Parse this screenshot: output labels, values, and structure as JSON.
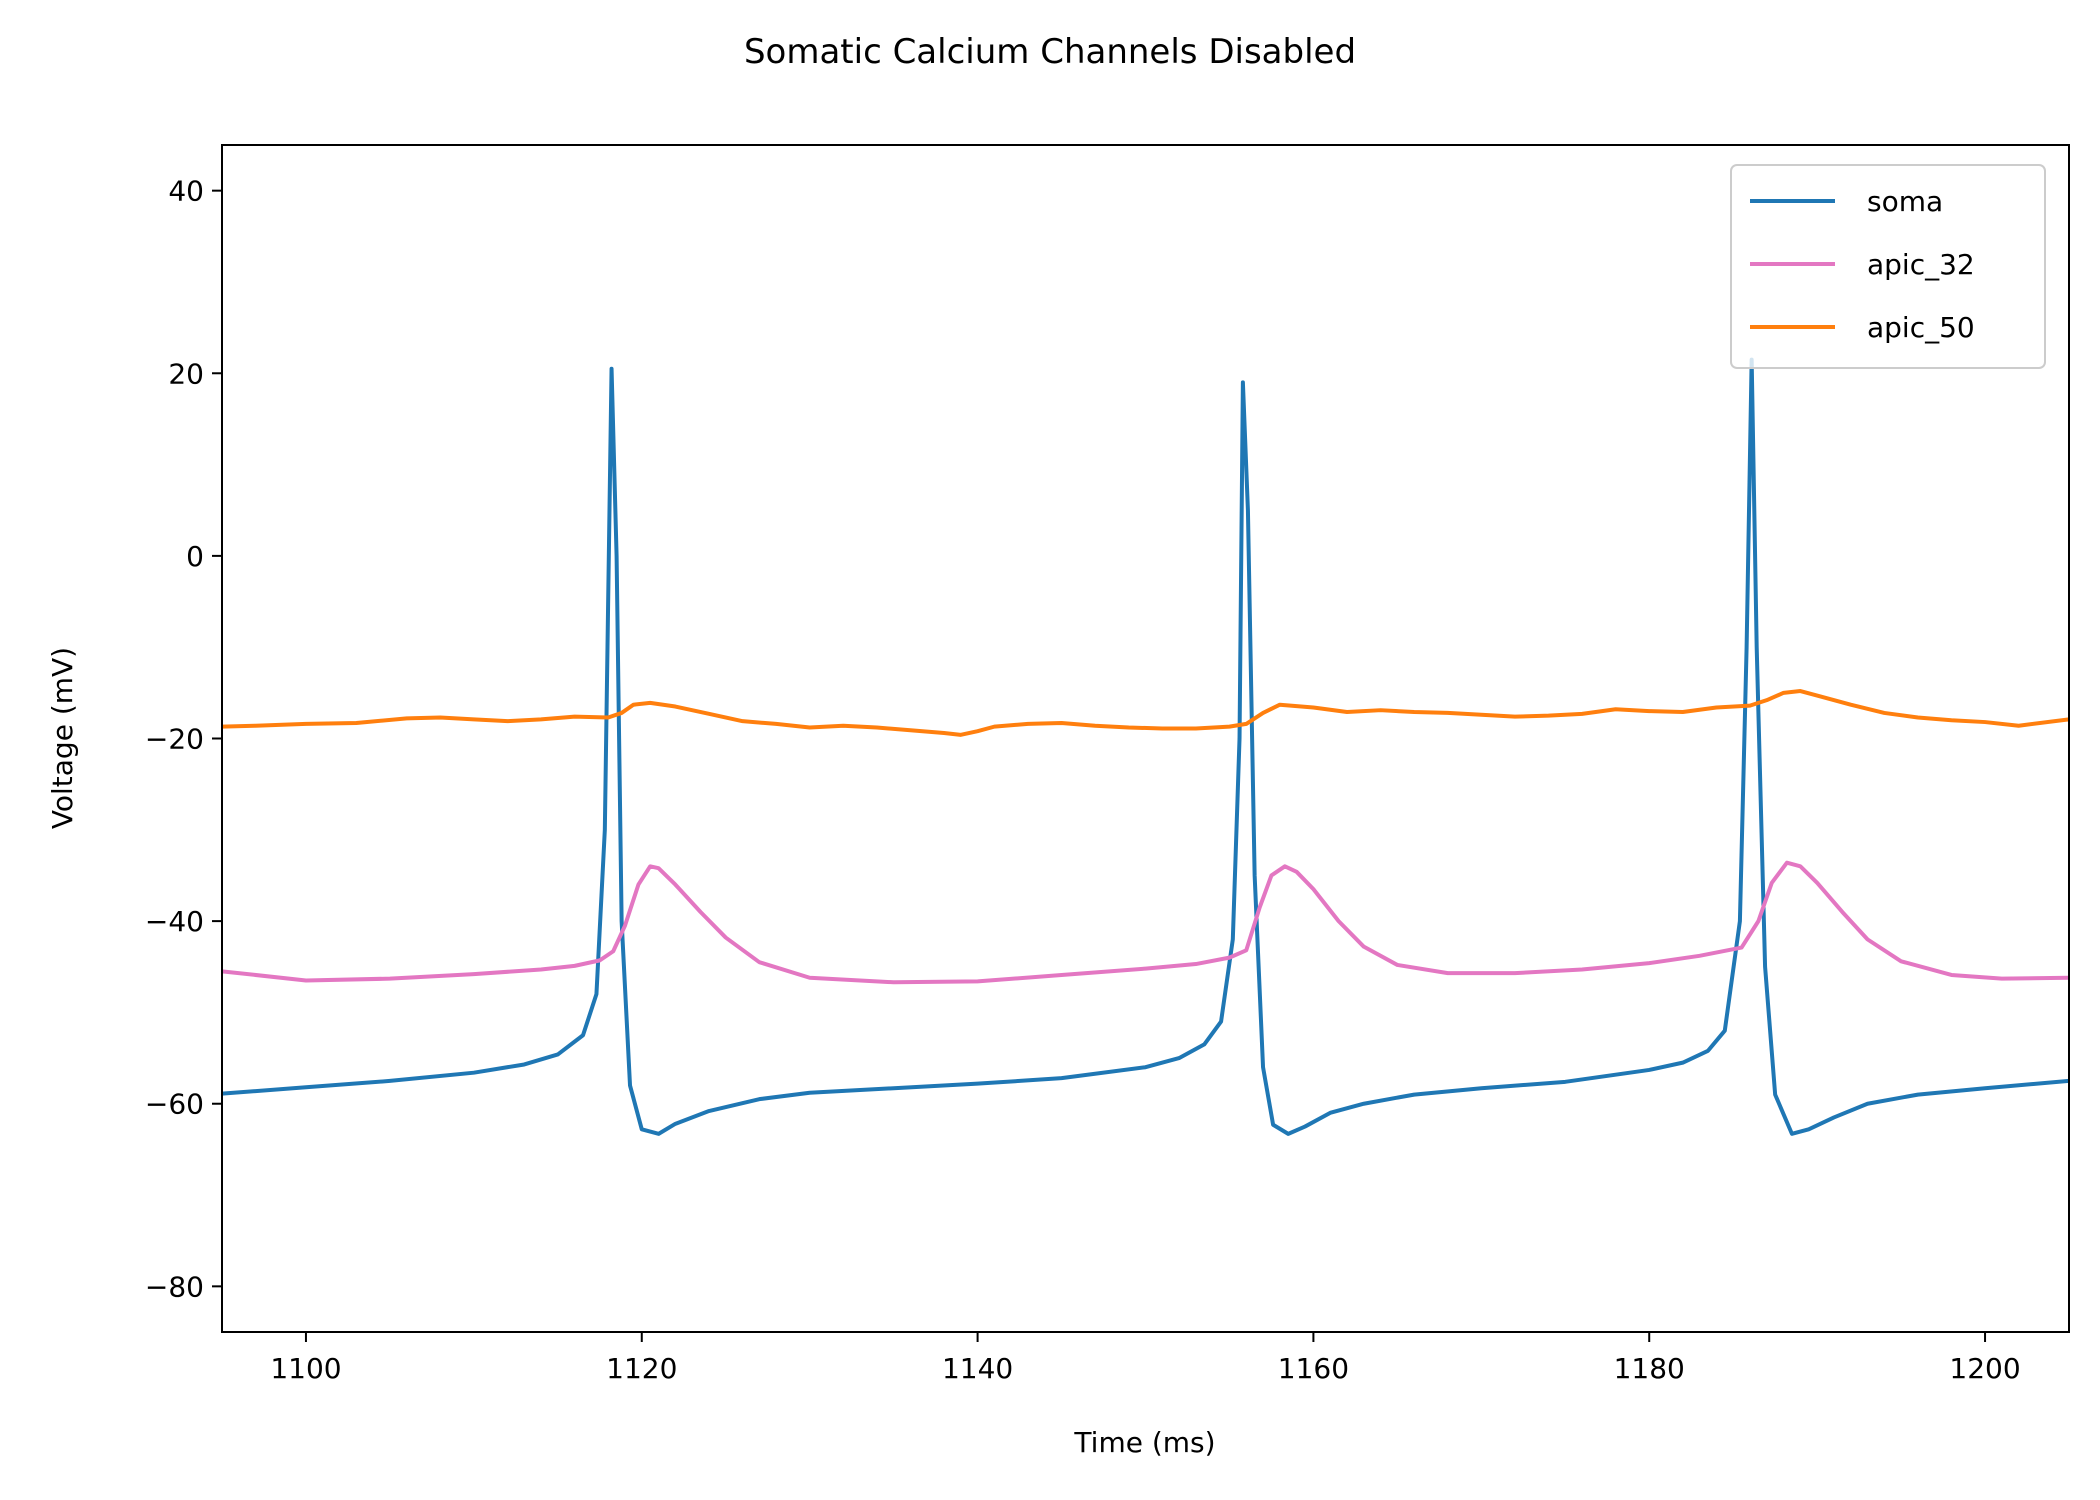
{
  "chart_data": {
    "type": "line",
    "title": "Somatic Calcium Channels Disabled",
    "xlabel": "Time (ms)",
    "ylabel": "Voltage (mV)",
    "xlim": [
      1095,
      1205
    ],
    "ylim": [
      -85,
      45
    ],
    "xticks": [
      1100,
      1120,
      1140,
      1160,
      1180,
      1200
    ],
    "yticks": [
      -80,
      -60,
      -40,
      -20,
      0,
      20,
      40
    ],
    "xtick_labels": [
      "1100",
      "1120",
      "1140",
      "1160",
      "1180",
      "1200"
    ],
    "ytick_labels": [
      "−80",
      "−60",
      "−40",
      "−20",
      "0",
      "20",
      "40"
    ],
    "grid": false,
    "legend_position": "top-right",
    "series": [
      {
        "name": "soma",
        "color": "#1f77b4",
        "x": [
          1095,
          1100,
          1105,
          1110,
          1113,
          1115,
          1116.5,
          1117.3,
          1117.8,
          1118.2,
          1118.5,
          1118.8,
          1119.3,
          1120,
          1121,
          1122,
          1124,
          1127,
          1130,
          1135,
          1140,
          1145,
          1150,
          1152,
          1153.5,
          1154.5,
          1155.2,
          1155.6,
          1155.8,
          1156.1,
          1156.5,
          1157,
          1157.6,
          1158.5,
          1159.5,
          1161,
          1163,
          1166,
          1170,
          1175,
          1180,
          1182,
          1183.5,
          1184.5,
          1185.4,
          1185.8,
          1186.1,
          1186.4,
          1186.9,
          1187.5,
          1188.5,
          1189.5,
          1191,
          1193,
          1196,
          1200,
          1205
        ],
        "y": [
          -58.9,
          -58.2,
          -57.5,
          -56.6,
          -55.7,
          -54.6,
          -52.5,
          -48,
          -30,
          20.5,
          0,
          -40,
          -58,
          -62.8,
          -63.3,
          -62.2,
          -60.8,
          -59.5,
          -58.8,
          -58.3,
          -57.8,
          -57.2,
          -56,
          -55,
          -53.5,
          -51,
          -42,
          -20,
          19,
          5,
          -35,
          -56,
          -62.3,
          -63.3,
          -62.5,
          -61,
          -60,
          -59,
          -58.3,
          -57.6,
          -56.3,
          -55.5,
          -54.2,
          -52,
          -40,
          -10,
          21.5,
          -10,
          -45,
          -59,
          -63.3,
          -62.8,
          -61.5,
          -60,
          -59,
          -58.3,
          -57.5
        ]
      },
      {
        "name": "apic_32",
        "color": "#e377c2",
        "x": [
          1095,
          1100,
          1105,
          1110,
          1114,
          1116,
          1117.5,
          1118.3,
          1119,
          1119.8,
          1120.5,
          1121,
          1122,
          1123.5,
          1125,
          1127,
          1130,
          1135,
          1140,
          1145,
          1150,
          1153,
          1155,
          1156,
          1156.8,
          1157.5,
          1158.3,
          1159,
          1160,
          1161.5,
          1163,
          1165,
          1168,
          1172,
          1176,
          1180,
          1183,
          1185.5,
          1186.5,
          1187.3,
          1188.2,
          1189,
          1190,
          1191.5,
          1193,
          1195,
          1198,
          1201,
          1205
        ],
        "y": [
          -45.5,
          -46.5,
          -46.3,
          -45.8,
          -45.3,
          -44.9,
          -44.3,
          -43.3,
          -40.5,
          -36,
          -34,
          -34.2,
          -36,
          -39,
          -41.8,
          -44.5,
          -46.2,
          -46.7,
          -46.6,
          -45.9,
          -45.2,
          -44.7,
          -44,
          -43.2,
          -38.5,
          -35,
          -34,
          -34.6,
          -36.5,
          -40,
          -42.8,
          -44.8,
          -45.7,
          -45.7,
          -45.3,
          -44.6,
          -43.8,
          -42.9,
          -40,
          -35.8,
          -33.6,
          -34,
          -35.8,
          -39,
          -42,
          -44.4,
          -45.9,
          -46.3,
          -46.2
        ]
      },
      {
        "name": "apic_50",
        "color": "#ff7f0e",
        "x": [
          1095,
          1097,
          1100,
          1103,
          1106,
          1108,
          1110,
          1112,
          1114,
          1116,
          1118,
          1118.8,
          1119.5,
          1120.5,
          1122,
          1124,
          1126,
          1128,
          1130,
          1132,
          1134,
          1136,
          1138,
          1139,
          1140,
          1141,
          1143,
          1145,
          1147,
          1149,
          1151,
          1153,
          1155,
          1156,
          1157,
          1158,
          1160,
          1162,
          1164,
          1166,
          1168,
          1170,
          1172,
          1174,
          1176,
          1178,
          1180,
          1182,
          1184,
          1186,
          1187,
          1188,
          1189,
          1190,
          1192,
          1194,
          1196,
          1198,
          1200,
          1202,
          1205
        ],
        "y": [
          -18.7,
          -18.6,
          -18.4,
          -18.3,
          -17.8,
          -17.7,
          -17.9,
          -18.1,
          -17.9,
          -17.6,
          -17.7,
          -17.2,
          -16.3,
          -16.1,
          -16.5,
          -17.3,
          -18.1,
          -18.4,
          -18.8,
          -18.6,
          -18.8,
          -19.1,
          -19.4,
          -19.6,
          -19.2,
          -18.7,
          -18.4,
          -18.3,
          -18.6,
          -18.8,
          -18.9,
          -18.9,
          -18.7,
          -18.4,
          -17.2,
          -16.3,
          -16.6,
          -17.1,
          -16.9,
          -17.1,
          -17.2,
          -17.4,
          -17.6,
          -17.5,
          -17.3,
          -16.8,
          -17,
          -17.1,
          -16.6,
          -16.4,
          -15.8,
          -15,
          -14.8,
          -15.3,
          -16.3,
          -17.2,
          -17.7,
          -18,
          -18.2,
          -18.6,
          -17.9
        ]
      }
    ]
  }
}
